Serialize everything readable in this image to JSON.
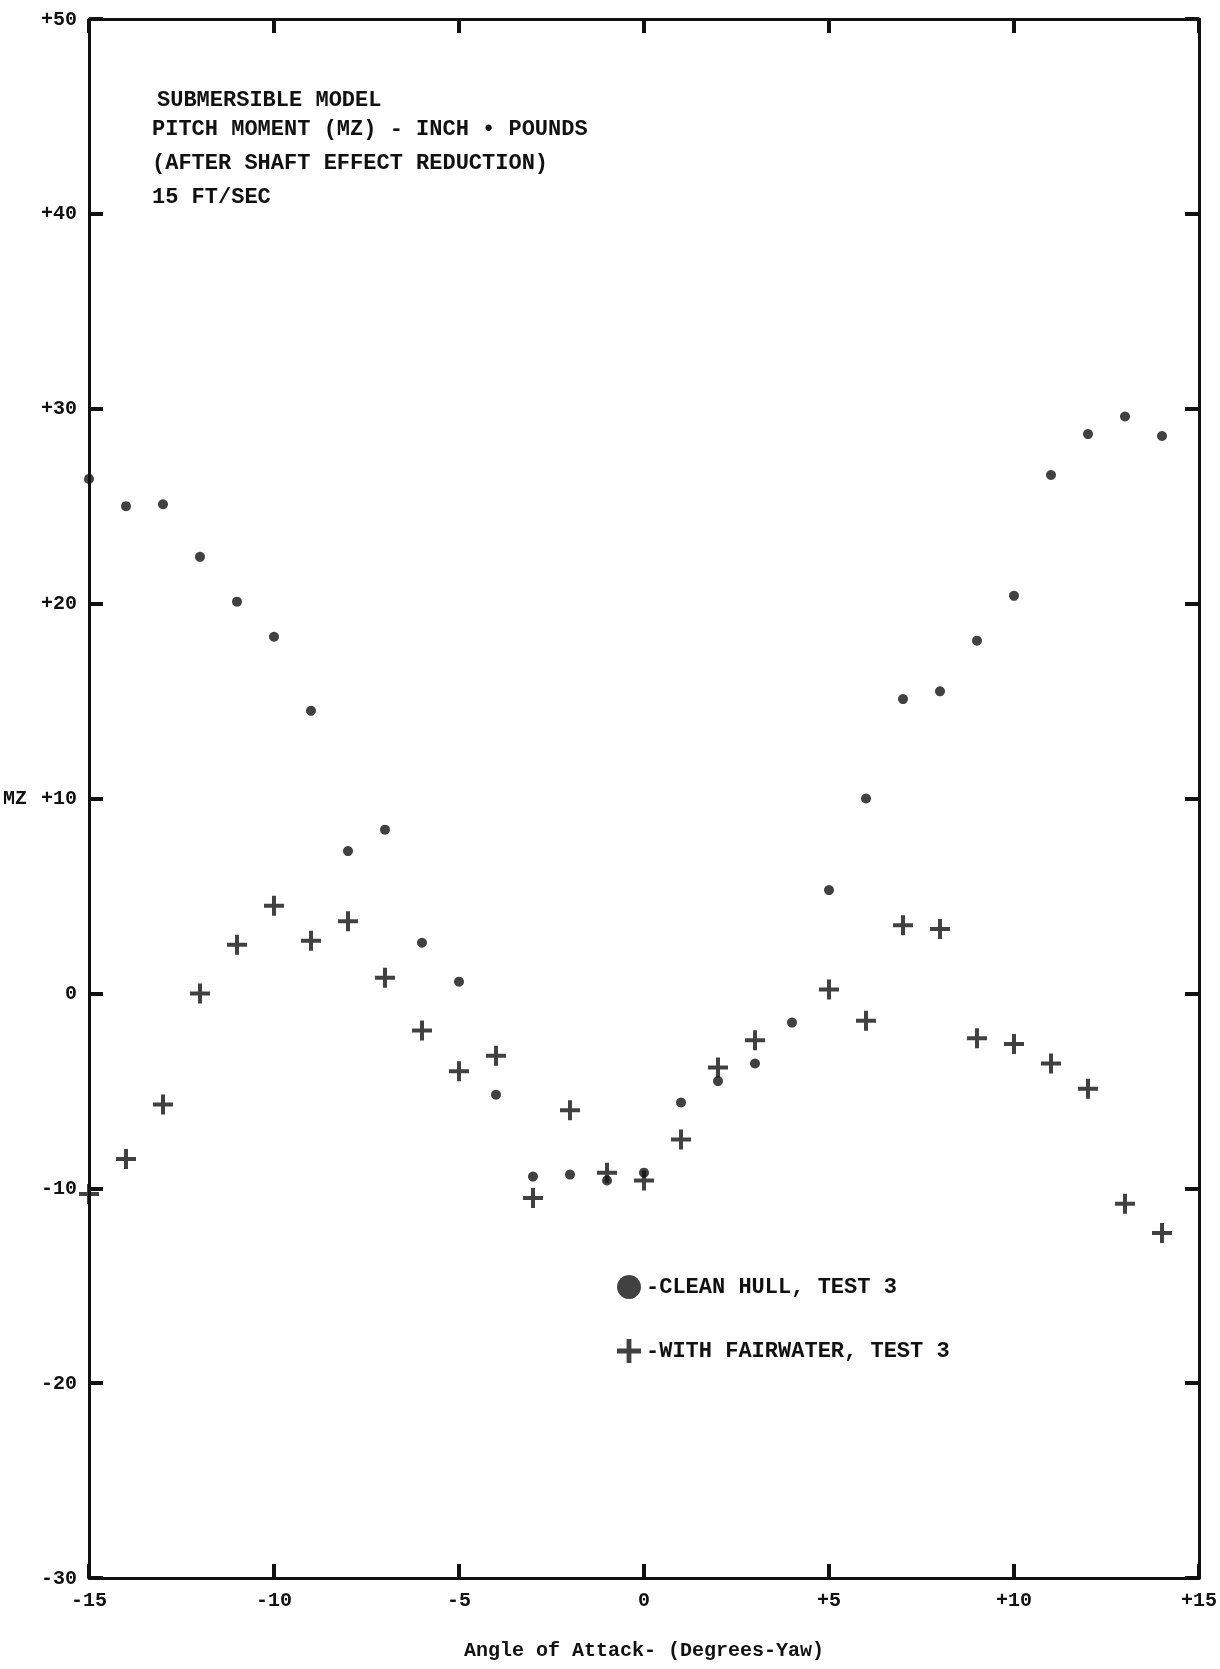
{
  "chart_data": {
    "type": "scatter",
    "title": "SUBMERSIBLE MODEL",
    "annotations": [
      "PITCH MOMENT (MZ) - INCH • POUNDS",
      "(AFTER SHAFT EFFECT REDUCTION)",
      "15 FT/SEC"
    ],
    "xlabel": "Angle of Attack- (Degrees-Yaw)",
    "ylabel": "MZ",
    "xlim": [
      -15,
      15
    ],
    "ylim": [
      -30,
      50
    ],
    "xticks": [
      -15,
      -10,
      -5,
      0,
      {
        "value": 5,
        "label": "+5"
      },
      {
        "value": 10,
        "label": "+10"
      },
      {
        "value": 15,
        "label": "+15"
      }
    ],
    "yticks": [
      -30,
      -20,
      -10,
      0,
      {
        "value": 10,
        "label": "+10"
      },
      {
        "value": 20,
        "label": "+20"
      },
      {
        "value": 30,
        "label": "+30"
      },
      {
        "value": 40,
        "label": "+40"
      },
      {
        "value": 50,
        "label": "+50"
      }
    ],
    "grid": false,
    "legend": "bottom right",
    "series": [
      {
        "name": "-CLEAN HULL, TEST 3",
        "color": "#111111",
        "marker": "circle",
        "x": [
          -15,
          -14,
          -13,
          -12,
          -11,
          -10,
          -9,
          -8,
          -7,
          -6,
          -5,
          -4,
          -3,
          -2,
          -1,
          0,
          1,
          2,
          3,
          4,
          5,
          6,
          7,
          8,
          9,
          10,
          11,
          12,
          13,
          14
        ],
        "values": [
          26.4,
          25.0,
          25.1,
          22.4,
          20.1,
          18.3,
          14.5,
          7.3,
          8.4,
          2.6,
          0.6,
          -5.2,
          -9.4,
          -9.3,
          -9.6,
          -9.2,
          -5.6,
          -4.5,
          -3.6,
          -1.5,
          5.3,
          10.0,
          15.1,
          15.5,
          18.1,
          20.4,
          26.6,
          28.7,
          29.6,
          28.6
        ]
      },
      {
        "name": "-WITH FAIRWATER, TEST 3",
        "color": "#111111",
        "marker": "cross",
        "x": [
          -15,
          -14,
          -13,
          -12,
          -11,
          -10,
          -9,
          -8,
          -7,
          -6,
          -5,
          -4,
          -3,
          -2,
          -1,
          0,
          1,
          2,
          3,
          5,
          6,
          7,
          8,
          9,
          10,
          11,
          12,
          13,
          14
        ],
        "values": [
          -10.3,
          -8.5,
          -5.7,
          0,
          2.5,
          4.5,
          2.7,
          3.7,
          0.8,
          -1.9,
          -4.0,
          -3.2,
          -10.5,
          -6.0,
          -9.2,
          -9.6,
          -7.5,
          -3.8,
          -2.4,
          0.2,
          -1.4,
          3.5,
          3.3,
          -2.3,
          -2.6,
          -3.6,
          -4.9,
          -10.8,
          -12.3
        ]
      }
    ]
  }
}
